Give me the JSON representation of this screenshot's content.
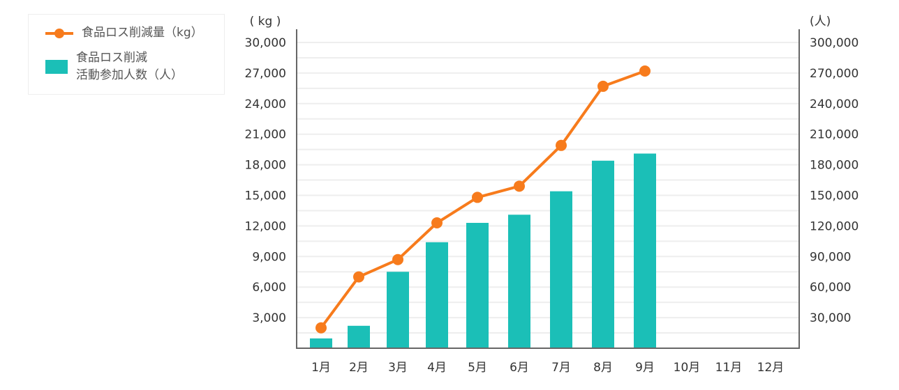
{
  "chart_data": {
    "type": "bar+line",
    "categories": [
      "1月",
      "2月",
      "3月",
      "4月",
      "5月",
      "6月",
      "7月",
      "8月",
      "9月",
      "10月",
      "11月",
      "12月"
    ],
    "series": [
      {
        "name": "食品ロス削減量（kg）",
        "type": "line",
        "axis": "left",
        "color": "#f77b1c",
        "values": [
          2000,
          7000,
          8700,
          12300,
          14800,
          15900,
          19900,
          25700,
          27200,
          null,
          null,
          null
        ]
      },
      {
        "name": "食品ロス削減活動参加人数（人）",
        "type": "bar",
        "axis": "right",
        "color": "#1bbfb7",
        "values": [
          9600,
          22000,
          75000,
          104000,
          123000,
          131000,
          154000,
          184000,
          191000,
          null,
          null,
          null
        ]
      }
    ],
    "left_axis": {
      "unit_label": "( kg )",
      "ylim": [
        0,
        30000
      ],
      "ticks": [
        "3,000",
        "6,000",
        "9,000",
        "12,000",
        "15,000",
        "18,000",
        "21,000",
        "24,000",
        "27,000",
        "30,000"
      ]
    },
    "right_axis": {
      "unit_label": "(人)",
      "ylim": [
        0,
        300000
      ],
      "ticks": [
        "30,000",
        "60,000",
        "90,000",
        "120,000",
        "150,000",
        "180,000",
        "210,000",
        "240,000",
        "270,000",
        "300,000"
      ]
    },
    "grid": true,
    "legend_placement": "top-left",
    "legend": {
      "line_label": "食品ロス削減量（kg）",
      "bar_label_1": "食品ロス削減",
      "bar_label_2": "活動参加人数（人）"
    }
  }
}
